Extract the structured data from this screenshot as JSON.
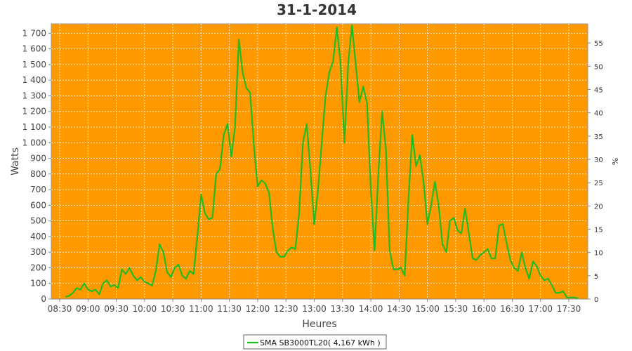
{
  "colors": {
    "plot_background": "#FF9900",
    "series_line": "#22BB22",
    "grid": "#FFFFFF"
  },
  "chart_data": {
    "type": "line",
    "title": "31-1-2014",
    "xlabel": "Heures",
    "ylabel": "Watts",
    "y2label": "%",
    "x_ticks": [
      "08:30",
      "09:00",
      "09:30",
      "10:00",
      "10:30",
      "11:00",
      "11:30",
      "12:00",
      "12:30",
      "13:00",
      "13:30",
      "14:00",
      "14:30",
      "15:00",
      "15:30",
      "16:00",
      "16:30",
      "17:00",
      "17:30"
    ],
    "y_ticks": [
      "0",
      "100",
      "200",
      "300",
      "400",
      "500",
      "600",
      "700",
      "800",
      "900",
      "1 000",
      "1 100",
      "1 200",
      "1 300",
      "1 400",
      "1 500",
      "1 600",
      "1 700"
    ],
    "y2_ticks": [
      "0",
      "5",
      "10",
      "15",
      "20",
      "25",
      "30",
      "35",
      "40",
      "45",
      "50",
      "55"
    ],
    "ylim": [
      0,
      1760
    ],
    "y2lim": [
      0,
      59.1
    ],
    "grid": true,
    "legend_position": "bottom",
    "series": [
      {
        "name": "SMA SB3000TL20( 4,167 kWh )",
        "x": [
          "08:36",
          "08:40",
          "08:44",
          "08:48",
          "08:52",
          "08:56",
          "09:00",
          "09:04",
          "09:08",
          "09:12",
          "09:16",
          "09:20",
          "09:24",
          "09:28",
          "09:32",
          "09:36",
          "09:40",
          "09:44",
          "09:48",
          "09:52",
          "09:56",
          "10:00",
          "10:04",
          "10:08",
          "10:12",
          "10:16",
          "10:20",
          "10:24",
          "10:28",
          "10:32",
          "10:36",
          "10:40",
          "10:44",
          "10:48",
          "10:52",
          "10:56",
          "11:00",
          "11:04",
          "11:08",
          "11:12",
          "11:16",
          "11:20",
          "11:24",
          "11:28",
          "11:32",
          "11:36",
          "11:40",
          "11:44",
          "11:48",
          "11:52",
          "11:56",
          "12:00",
          "12:04",
          "12:08",
          "12:12",
          "12:16",
          "12:20",
          "12:24",
          "12:28",
          "12:32",
          "12:36",
          "12:40",
          "12:44",
          "12:48",
          "12:52",
          "12:56",
          "13:00",
          "13:04",
          "13:08",
          "13:12",
          "13:16",
          "13:20",
          "13:24",
          "13:28",
          "13:32",
          "13:36",
          "13:40",
          "13:44",
          "13:48",
          "13:52",
          "13:56",
          "14:00",
          "14:04",
          "14:08",
          "14:12",
          "14:16",
          "14:20",
          "14:24",
          "14:28",
          "14:32",
          "14:36",
          "14:40",
          "14:44",
          "14:48",
          "14:52",
          "14:56",
          "15:00",
          "15:04",
          "15:08",
          "15:12",
          "15:16",
          "15:20",
          "15:24",
          "15:28",
          "15:32",
          "15:36",
          "15:40",
          "15:44",
          "15:48",
          "15:52",
          "15:56",
          "16:00",
          "16:04",
          "16:08",
          "16:12",
          "16:16",
          "16:20",
          "16:24",
          "16:28",
          "16:32",
          "16:36",
          "16:40",
          "16:44",
          "16:48",
          "16:52",
          "16:56",
          "17:00",
          "17:04",
          "17:08",
          "17:12",
          "17:16",
          "17:20",
          "17:24",
          "17:28",
          "17:32",
          "17:36",
          "17:40"
        ],
        "values": [
          15,
          20,
          40,
          70,
          60,
          100,
          60,
          50,
          60,
          30,
          100,
          120,
          80,
          90,
          70,
          190,
          160,
          200,
          150,
          120,
          140,
          110,
          100,
          85,
          180,
          350,
          300,
          170,
          140,
          200,
          220,
          150,
          130,
          180,
          160,
          400,
          670,
          550,
          510,
          520,
          800,
          830,
          1050,
          1120,
          910,
          1100,
          1660,
          1450,
          1350,
          1320,
          980,
          720,
          760,
          740,
          680,
          450,
          300,
          270,
          270,
          310,
          330,
          320,
          550,
          1000,
          1120,
          820,
          480,
          700,
          1000,
          1300,
          1450,
          1520,
          1740,
          1500,
          1000,
          1500,
          1750,
          1500,
          1260,
          1360,
          1250,
          700,
          310,
          800,
          1200,
          960,
          310,
          190,
          190,
          200,
          150,
          650,
          1050,
          850,
          920,
          750,
          480,
          600,
          750,
          600,
          350,
          300,
          500,
          520,
          440,
          420,
          580,
          420,
          260,
          250,
          280,
          300,
          320,
          260,
          260,
          470,
          480,
          360,
          250,
          200,
          180,
          300,
          200,
          130,
          240,
          210,
          150,
          120,
          130,
          90,
          40,
          40,
          50,
          10,
          10,
          10,
          5
        ]
      }
    ]
  }
}
